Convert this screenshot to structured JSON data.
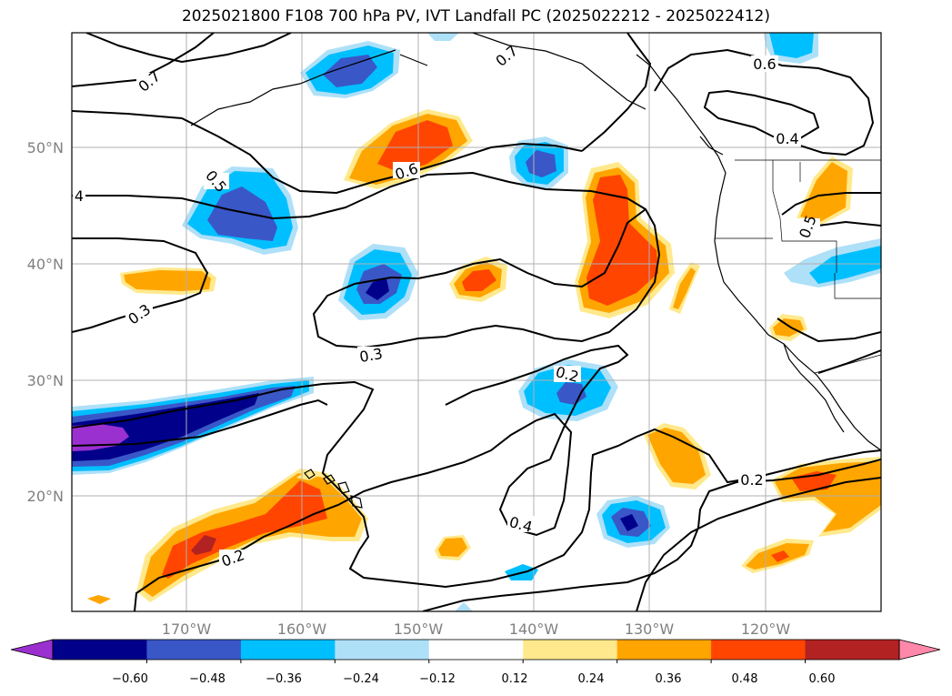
{
  "title": "2025021800 F108 700 hPa PV, IVT Landfall PC (2025022212 - 2025022412)",
  "map": {
    "lat_labels": [
      "50°N",
      "40°N",
      "30°N",
      "20°N"
    ],
    "lon_labels": [
      "170°W",
      "160°W",
      "150°W",
      "140°W",
      "130°W",
      "120°W"
    ],
    "contour_labels": [
      "0.7",
      "0.7",
      "0.6",
      "0.4",
      "0.5",
      "0.6",
      "4",
      "0.5",
      "0.3",
      "0.3",
      "0.2",
      "0.2",
      "0.4",
      "0.2"
    ]
  },
  "colorbar": {
    "ticks": [
      "−0.60",
      "−0.48",
      "−0.36",
      "−0.24",
      "−0.12",
      "0.12",
      "0.24",
      "0.36",
      "0.48",
      "0.60"
    ],
    "colors": [
      "#9b30d0",
      "#00008b",
      "#3a57c8",
      "#00bfff",
      "#aee0f8",
      "#ffffff",
      "#ffe98c",
      "#ffa500",
      "#ff4500",
      "#b22222",
      "#ff88aa"
    ]
  }
}
